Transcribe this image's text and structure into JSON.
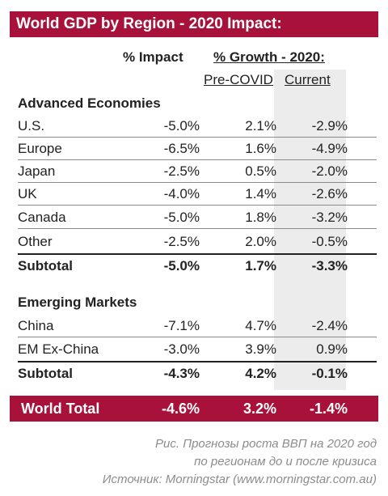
{
  "chart_data": {
    "type": "table",
    "title": "World GDP by Region - 2020 Impact:",
    "column_headers": {
      "impact": "% Impact",
      "growth": "% Growth - 2020:",
      "pre_covid": "Pre-COVID",
      "current": "Current"
    },
    "sections": [
      {
        "name": "Advanced Economies",
        "rows": [
          {
            "label": "U.S.",
            "impact": "-5.0%",
            "pre": "2.1%",
            "current": "-2.9%"
          },
          {
            "label": "Europe",
            "impact": "-6.5%",
            "pre": "1.6%",
            "current": "-4.9%"
          },
          {
            "label": "Japan",
            "impact": "-2.5%",
            "pre": "0.5%",
            "current": "-2.0%"
          },
          {
            "label": "UK",
            "impact": "-4.0%",
            "pre": "1.4%",
            "current": "-2.6%"
          },
          {
            "label": "Canada",
            "impact": "-5.0%",
            "pre": "1.8%",
            "current": "-3.2%"
          },
          {
            "label": "Other",
            "impact": "-2.5%",
            "pre": "2.0%",
            "current": "-0.5%"
          }
        ],
        "subtotal": {
          "label": "Subtotal",
          "impact": "-5.0%",
          "pre": "1.7%",
          "current": "-3.3%"
        }
      },
      {
        "name": "Emerging Markets",
        "rows": [
          {
            "label": "China",
            "impact": "-7.1%",
            "pre": "4.7%",
            "current": "-2.4%"
          },
          {
            "label": "EM Ex-China",
            "impact": "-3.0%",
            "pre": "3.9%",
            "current": "0.9%"
          }
        ],
        "subtotal": {
          "label": "Subtotal",
          "impact": "-4.3%",
          "pre": "4.2%",
          "current": "-0.1%"
        }
      }
    ],
    "total": {
      "label": "World Total",
      "impact": "-4.6%",
      "pre": "3.2%",
      "current": "-1.4%"
    }
  },
  "caption": {
    "line1": "Рис. Прогнозы роста ВВП на 2020 год",
    "line2": "по регионам до и после кризиса",
    "line3": "Источник: Morningstar (www.morningstar.com.au)"
  },
  "colors": {
    "accent": "#a8123a",
    "current_column_shade": "#ececec",
    "caption": "#8c8c8c"
  }
}
